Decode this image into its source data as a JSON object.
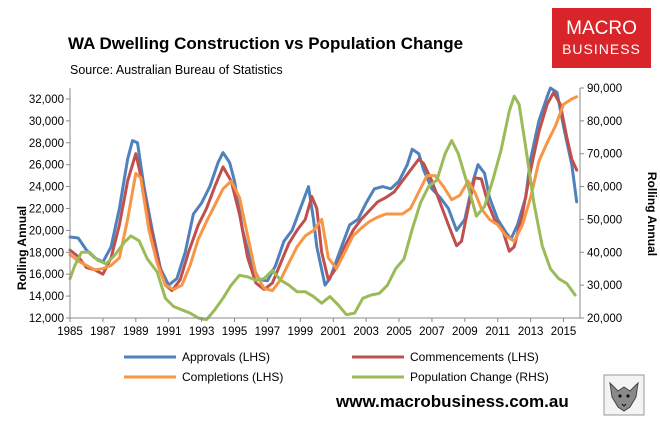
{
  "chart_data": {
    "type": "line",
    "title": "WA Dwelling Construction vs Population Change",
    "subtitle": "Source: Australian Bureau of Statistics",
    "y_left_label": "Rolling Annual",
    "y_right_label": "Rolling Annual",
    "x_ticks": [
      "1985",
      "1987",
      "1989",
      "1991",
      "1993",
      "1995",
      "1997",
      "1999",
      "2001",
      "2003",
      "2005",
      "2007",
      "2009",
      "2011",
      "2013",
      "2015"
    ],
    "x_range": [
      1985,
      2016
    ],
    "y_left_range": [
      12000,
      33000
    ],
    "y_right_range": [
      20000,
      90000
    ],
    "y_left_ticks": [
      "12,000",
      "14,000",
      "16,000",
      "18,000",
      "20,000",
      "22,000",
      "24,000",
      "26,000",
      "28,000",
      "30,000",
      "32,000"
    ],
    "y_right_ticks": [
      "20,000",
      "30,000",
      "40,000",
      "50,000",
      "60,000",
      "70,000",
      "80,000",
      "90,000"
    ],
    "legend_position": "bottom",
    "series": [
      {
        "name": "Approvals (LHS)",
        "axis": "left",
        "color": "#4f81bd",
        "points": [
          [
            1985,
            19400
          ],
          [
            1985.5,
            19300
          ],
          [
            1986,
            18200
          ],
          [
            1986.5,
            17500
          ],
          [
            1987,
            17100
          ],
          [
            1987.5,
            18500
          ],
          [
            1988,
            22000
          ],
          [
            1988.5,
            26500
          ],
          [
            1988.8,
            28200
          ],
          [
            1989.1,
            28000
          ],
          [
            1989.5,
            24000
          ],
          [
            1990,
            20000
          ],
          [
            1990.5,
            16500
          ],
          [
            1991,
            15000
          ],
          [
            1991.5,
            15600
          ],
          [
            1992,
            18000
          ],
          [
            1992.5,
            21500
          ],
          [
            1993,
            22500
          ],
          [
            1993.5,
            24000
          ],
          [
            1994,
            26200
          ],
          [
            1994.3,
            27100
          ],
          [
            1994.7,
            26200
          ],
          [
            1995,
            24500
          ],
          [
            1995.5,
            20000
          ],
          [
            1996,
            17000
          ],
          [
            1996.5,
            15500
          ],
          [
            1997,
            15400
          ],
          [
            1997.5,
            16800
          ],
          [
            1998,
            19000
          ],
          [
            1998.5,
            20000
          ],
          [
            1999,
            22000
          ],
          [
            1999.5,
            24000
          ],
          [
            1999.8,
            21000
          ],
          [
            2000,
            18500
          ],
          [
            2000.5,
            15000
          ],
          [
            2000.8,
            15600
          ],
          [
            2001.5,
            18500
          ],
          [
            2002,
            20500
          ],
          [
            2002.5,
            21000
          ],
          [
            2003,
            22500
          ],
          [
            2003.5,
            23800
          ],
          [
            2004,
            24000
          ],
          [
            2004.5,
            23800
          ],
          [
            2005,
            24500
          ],
          [
            2005.5,
            26000
          ],
          [
            2005.8,
            27400
          ],
          [
            2006.2,
            27000
          ],
          [
            2006.5,
            25500
          ],
          [
            2007,
            23800
          ],
          [
            2007.5,
            23000
          ],
          [
            2008,
            22000
          ],
          [
            2008.5,
            20000
          ],
          [
            2009,
            21000
          ],
          [
            2009.5,
            24500
          ],
          [
            2009.8,
            26000
          ],
          [
            2010.2,
            25200
          ],
          [
            2010.5,
            23000
          ],
          [
            2011,
            21000
          ],
          [
            2011.5,
            19800
          ],
          [
            2011.8,
            19200
          ],
          [
            2012.2,
            20500
          ],
          [
            2012.7,
            23000
          ],
          [
            2013,
            26500
          ],
          [
            2013.5,
            30000
          ],
          [
            2014,
            32200
          ],
          [
            2014.2,
            33000
          ],
          [
            2014.6,
            32600
          ],
          [
            2015,
            29500
          ],
          [
            2015.5,
            26000
          ],
          [
            2015.8,
            22600
          ]
        ]
      },
      {
        "name": "Commencements (LHS)",
        "axis": "left",
        "color": "#c0504d",
        "points": [
          [
            1985,
            18200
          ],
          [
            1985.5,
            17600
          ],
          [
            1986,
            16600
          ],
          [
            1986.5,
            16400
          ],
          [
            1987,
            16000
          ],
          [
            1987.5,
            17500
          ],
          [
            1988,
            20500
          ],
          [
            1988.5,
            24500
          ],
          [
            1989,
            27000
          ],
          [
            1989.3,
            25000
          ],
          [
            1989.8,
            21000
          ],
          [
            1990.3,
            17500
          ],
          [
            1990.8,
            15000
          ],
          [
            1991.2,
            14500
          ],
          [
            1991.7,
            15500
          ],
          [
            1992.2,
            18000
          ],
          [
            1992.8,
            20500
          ],
          [
            1993.3,
            22000
          ],
          [
            1993.8,
            24000
          ],
          [
            1994.3,
            25800
          ],
          [
            1994.8,
            24500
          ],
          [
            1995.3,
            21500
          ],
          [
            1995.8,
            17500
          ],
          [
            1996.3,
            15200
          ],
          [
            1996.8,
            14600
          ],
          [
            1997.3,
            15200
          ],
          [
            1997.8,
            17000
          ],
          [
            1998.3,
            18800
          ],
          [
            1998.8,
            20000
          ],
          [
            1999.3,
            21000
          ],
          [
            1999.7,
            23100
          ],
          [
            2000,
            22000
          ],
          [
            2000.3,
            18000
          ],
          [
            2000.7,
            15500
          ],
          [
            2001.2,
            16600
          ],
          [
            2001.7,
            18500
          ],
          [
            2002.2,
            20000
          ],
          [
            2002.7,
            21000
          ],
          [
            2003.2,
            21800
          ],
          [
            2003.7,
            22600
          ],
          [
            2004.2,
            23000
          ],
          [
            2004.7,
            23500
          ],
          [
            2005.2,
            24500
          ],
          [
            2005.7,
            25500
          ],
          [
            2006.2,
            26500
          ],
          [
            2006.5,
            26100
          ],
          [
            2007,
            24500
          ],
          [
            2007.5,
            22500
          ],
          [
            2008,
            20500
          ],
          [
            2008.5,
            18600
          ],
          [
            2008.8,
            19000
          ],
          [
            2009.2,
            22000
          ],
          [
            2009.6,
            24800
          ],
          [
            2010,
            24700
          ],
          [
            2010.4,
            22500
          ],
          [
            2010.8,
            21000
          ],
          [
            2011.3,
            20000
          ],
          [
            2011.7,
            18100
          ],
          [
            2012,
            18500
          ],
          [
            2012.5,
            21500
          ],
          [
            2013,
            25500
          ],
          [
            2013.5,
            29000
          ],
          [
            2014,
            31500
          ],
          [
            2014.4,
            32600
          ],
          [
            2014.8,
            31500
          ],
          [
            2015.2,
            28500
          ],
          [
            2015.5,
            26500
          ],
          [
            2015.8,
            25500
          ]
        ]
      },
      {
        "name": "Completions (LHS)",
        "axis": "left",
        "color": "#f79646",
        "points": [
          [
            1985,
            17800
          ],
          [
            1985.5,
            17200
          ],
          [
            1986,
            16800
          ],
          [
            1986.5,
            16400
          ],
          [
            1987,
            16500
          ],
          [
            1987.5,
            16800
          ],
          [
            1988,
            17500
          ],
          [
            1988.5,
            21000
          ],
          [
            1989,
            25200
          ],
          [
            1989.3,
            24800
          ],
          [
            1989.8,
            20000
          ],
          [
            1990.3,
            17000
          ],
          [
            1990.8,
            15000
          ],
          [
            1991.3,
            14600
          ],
          [
            1991.8,
            15000
          ],
          [
            1992.3,
            16800
          ],
          [
            1992.8,
            19200
          ],
          [
            1993.3,
            20800
          ],
          [
            1993.8,
            22300
          ],
          [
            1994.3,
            23800
          ],
          [
            1994.8,
            24500
          ],
          [
            1995.3,
            23000
          ],
          [
            1995.8,
            19500
          ],
          [
            1996.3,
            16000
          ],
          [
            1996.8,
            14700
          ],
          [
            1997.3,
            14500
          ],
          [
            1997.8,
            15500
          ],
          [
            1998.3,
            17000
          ],
          [
            1998.8,
            18500
          ],
          [
            1999.3,
            19500
          ],
          [
            1999.8,
            20000
          ],
          [
            2000.3,
            21000
          ],
          [
            2000.7,
            17500
          ],
          [
            2001.2,
            16500
          ],
          [
            2001.7,
            18000
          ],
          [
            2002.2,
            19500
          ],
          [
            2002.7,
            20200
          ],
          [
            2003.2,
            20800
          ],
          [
            2003.7,
            21200
          ],
          [
            2004.2,
            21500
          ],
          [
            2004.7,
            21500
          ],
          [
            2005.2,
            21500
          ],
          [
            2005.7,
            22000
          ],
          [
            2006.2,
            23500
          ],
          [
            2006.7,
            25000
          ],
          [
            2007.2,
            25000
          ],
          [
            2007.7,
            24000
          ],
          [
            2008.2,
            22800
          ],
          [
            2008.7,
            23200
          ],
          [
            2009.2,
            24500
          ],
          [
            2009.6,
            23500
          ],
          [
            2010,
            22000
          ],
          [
            2010.5,
            21000
          ],
          [
            2011,
            20500
          ],
          [
            2011.5,
            19500
          ],
          [
            2012,
            19000
          ],
          [
            2012.5,
            20500
          ],
          [
            2013,
            23000
          ],
          [
            2013.5,
            26300
          ],
          [
            2014,
            28000
          ],
          [
            2014.5,
            29500
          ],
          [
            2015,
            31500
          ],
          [
            2015.5,
            32000
          ],
          [
            2015.8,
            32200
          ]
        ]
      },
      {
        "name": "Population Change (RHS)",
        "axis": "right",
        "color": "#9bbb59",
        "points": [
          [
            1985,
            32000
          ],
          [
            1985.3,
            36000
          ],
          [
            1985.7,
            40000
          ],
          [
            1986.2,
            40000
          ],
          [
            1986.7,
            37500
          ],
          [
            1987.2,
            36500
          ],
          [
            1987.7,
            39000
          ],
          [
            1988.3,
            43000
          ],
          [
            1988.7,
            45000
          ],
          [
            1989.2,
            43500
          ],
          [
            1989.7,
            38000
          ],
          [
            1990.3,
            34000
          ],
          [
            1990.8,
            26000
          ],
          [
            1991.3,
            23500
          ],
          [
            1991.8,
            22500
          ],
          [
            1992.3,
            21500
          ],
          [
            1992.8,
            20000
          ],
          [
            1993.3,
            19500
          ],
          [
            1993.8,
            22500
          ],
          [
            1994.3,
            26000
          ],
          [
            1994.8,
            30000
          ],
          [
            1995.3,
            33000
          ],
          [
            1995.8,
            32500
          ],
          [
            1996.3,
            31500
          ],
          [
            1996.8,
            32000
          ],
          [
            1997.3,
            34500
          ],
          [
            1997.8,
            31500
          ],
          [
            1998.3,
            30000
          ],
          [
            1998.8,
            28000
          ],
          [
            1999.3,
            28000
          ],
          [
            1999.8,
            26500
          ],
          [
            2000.3,
            24500
          ],
          [
            2000.8,
            26500
          ],
          [
            2001.3,
            24000
          ],
          [
            2001.8,
            21000
          ],
          [
            2002.3,
            21500
          ],
          [
            2002.8,
            26000
          ],
          [
            2003.3,
            27000
          ],
          [
            2003.8,
            27500
          ],
          [
            2004.3,
            30000
          ],
          [
            2004.8,
            35000
          ],
          [
            2005.3,
            38000
          ],
          [
            2005.8,
            47000
          ],
          [
            2006.3,
            55000
          ],
          [
            2006.8,
            60000
          ],
          [
            2007.3,
            62000
          ],
          [
            2007.8,
            70000
          ],
          [
            2008.2,
            74000
          ],
          [
            2008.6,
            70000
          ],
          [
            2009.2,
            60000
          ],
          [
            2009.7,
            51000
          ],
          [
            2010.2,
            54000
          ],
          [
            2010.7,
            62000
          ],
          [
            2011.2,
            71000
          ],
          [
            2011.7,
            83000
          ],
          [
            2012,
            87500
          ],
          [
            2012.3,
            85000
          ],
          [
            2012.7,
            72000
          ],
          [
            2013.2,
            55000
          ],
          [
            2013.7,
            42000
          ],
          [
            2014.2,
            35000
          ],
          [
            2014.7,
            32000
          ],
          [
            2015.2,
            30500
          ],
          [
            2015.7,
            27000
          ]
        ]
      }
    ]
  },
  "logo": {
    "line1": "MACRO",
    "line2": "BUSINESS",
    "color": "#d9242a"
  },
  "website": "www.macrobusiness.com.au",
  "mascot_icon": "wolf-icon"
}
